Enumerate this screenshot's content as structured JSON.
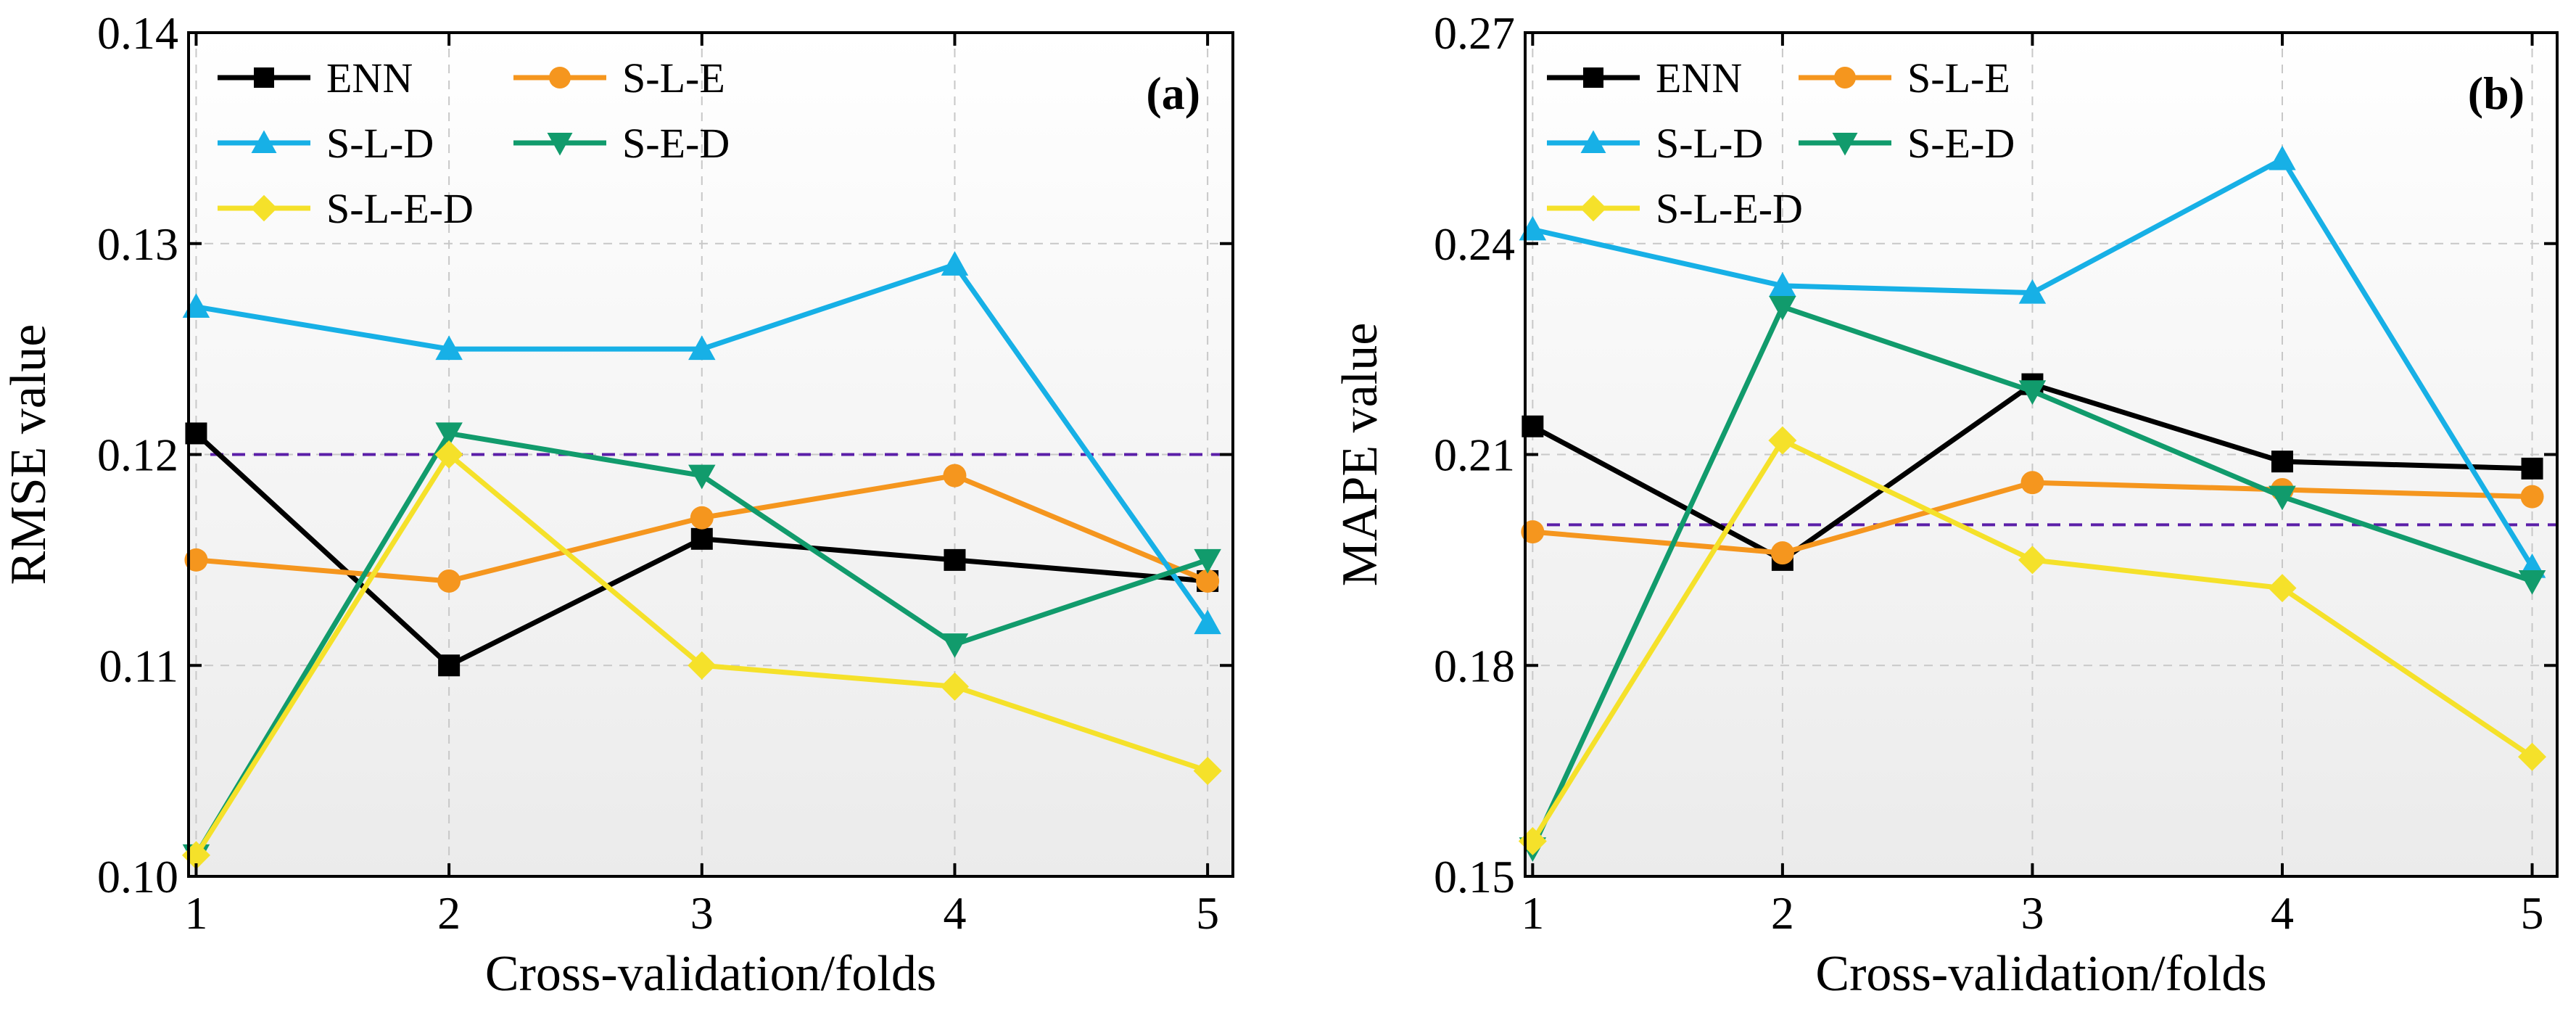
{
  "chart_data": [
    {
      "type": "line",
      "panel_label": "(a)",
      "xlabel": "Cross-validation/folds",
      "ylabel": "RMSE value",
      "x": [
        1,
        2,
        3,
        4,
        5
      ],
      "x_tick_labels": [
        "1",
        "2",
        "3",
        "4",
        "5"
      ],
      "xlim": [
        0.97,
        5.1
      ],
      "ylim": [
        0.1,
        0.14
      ],
      "y_ticks": [
        0.1,
        0.11,
        0.12,
        0.13,
        0.14
      ],
      "y_tick_labels": [
        "0.10",
        "0.11",
        "0.12",
        "0.13",
        "0.14"
      ],
      "reference_line": 0.12,
      "grid": true,
      "legend_position": "top-left",
      "series": [
        {
          "name": "ENN",
          "values": [
            0.121,
            0.11,
            0.116,
            0.115,
            0.114
          ],
          "color": "#000000",
          "marker": "square"
        },
        {
          "name": "S-L-E",
          "values": [
            0.115,
            0.114,
            0.117,
            0.119,
            0.114
          ],
          "color": "#f5961e",
          "marker": "circle"
        },
        {
          "name": "S-L-D",
          "values": [
            0.127,
            0.125,
            0.125,
            0.129,
            0.112
          ],
          "color": "#17b0e6",
          "marker": "triangle-up"
        },
        {
          "name": "S-E-D",
          "values": [
            0.101,
            0.121,
            0.119,
            0.111,
            0.115
          ],
          "color": "#119b6c",
          "marker": "triangle-down"
        },
        {
          "name": "S-L-E-D",
          "values": [
            0.101,
            0.12,
            0.11,
            0.109,
            0.105
          ],
          "color": "#f5e12a",
          "marker": "diamond"
        }
      ]
    },
    {
      "type": "line",
      "panel_label": "(b)",
      "xlabel": "Cross-validation/folds",
      "ylabel": "MAPE value",
      "x": [
        1,
        2,
        3,
        4,
        5
      ],
      "x_tick_labels": [
        "1",
        "2",
        "3",
        "4",
        "5"
      ],
      "xlim": [
        0.97,
        5.1
      ],
      "ylim": [
        0.15,
        0.27
      ],
      "y_ticks": [
        0.15,
        0.18,
        0.21,
        0.24,
        0.27
      ],
      "y_tick_labels": [
        "0.15",
        "0.18",
        "0.21",
        "0.24",
        "0.27"
      ],
      "reference_line": 0.2,
      "grid": true,
      "legend_position": "top-left",
      "series": [
        {
          "name": "ENN",
          "values": [
            0.214,
            0.195,
            0.22,
            0.209,
            0.208
          ],
          "color": "#000000",
          "marker": "square"
        },
        {
          "name": "S-L-E",
          "values": [
            0.199,
            0.196,
            0.206,
            0.205,
            0.204
          ],
          "color": "#f5961e",
          "marker": "circle"
        },
        {
          "name": "S-L-D",
          "values": [
            0.242,
            0.234,
            0.233,
            0.252,
            0.194
          ],
          "color": "#17b0e6",
          "marker": "triangle-up"
        },
        {
          "name": "S-E-D",
          "values": [
            0.154,
            0.231,
            0.219,
            0.204,
            0.192
          ],
          "color": "#119b6c",
          "marker": "triangle-down"
        },
        {
          "name": "S-L-E-D",
          "values": [
            0.155,
            0.212,
            0.195,
            0.191,
            0.167
          ],
          "color": "#f5e12a",
          "marker": "diamond"
        }
      ]
    }
  ]
}
